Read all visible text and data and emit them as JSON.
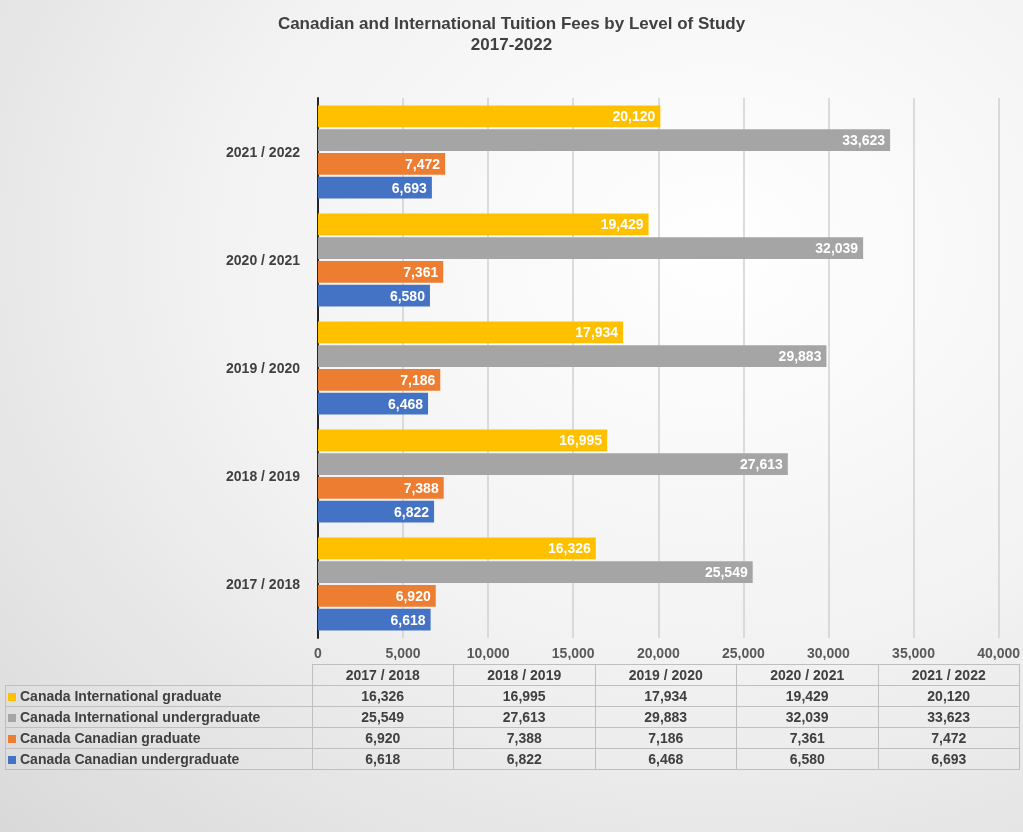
{
  "chart_data": {
    "type": "bar",
    "orientation": "horizontal",
    "title": "Canadian and International Tuition Fees by Level of Study",
    "subtitle": "2017-2022",
    "categories": [
      "2021 / 2022",
      "2020 / 2021",
      "2019 / 2020",
      "2018 / 2019",
      "2017 / 2018"
    ],
    "series": [
      {
        "name": "Canada International graduate",
        "color": "#ffc000",
        "values": [
          20120,
          19429,
          17934,
          16995,
          16326
        ],
        "value_labels": [
          "20,120",
          "19,429",
          "17,934",
          "16,995",
          "16,326"
        ]
      },
      {
        "name": "Canada International undergraduate",
        "color": "#a5a5a5",
        "values": [
          33623,
          32039,
          29883,
          27613,
          25549
        ],
        "value_labels": [
          "33,623",
          "32,039",
          "29,883",
          "27,613",
          "25,549"
        ]
      },
      {
        "name": "Canada Canadian graduate",
        "color": "#ed7d31",
        "values": [
          7472,
          7361,
          7186,
          7388,
          6920
        ],
        "value_labels": [
          "7,472",
          "7,361",
          "7,186",
          "7,388",
          "6,920"
        ]
      },
      {
        "name": "Canada Canadian undergraduate",
        "color": "#4472c4",
        "values": [
          6693,
          6580,
          6468,
          6822,
          6618
        ],
        "value_labels": [
          "6,693",
          "6,580",
          "6,468",
          "6,822",
          "6,618"
        ]
      }
    ],
    "xlim": [
      0,
      40000
    ],
    "xticks": [
      0,
      {
        "value": 5000,
        "label": "5,000"
      },
      {
        "value": 10000,
        "label": "10,000"
      },
      {
        "value": 15000,
        "label": "15,000"
      },
      {
        "value": 20000,
        "label": "20,000"
      },
      {
        "value": 25000,
        "label": "25,000"
      },
      {
        "value": 30000,
        "label": "30,000"
      },
      {
        "value": 35000,
        "label": "35,000"
      },
      {
        "value": 40000,
        "label": "40,000"
      }
    ],
    "grid": "x",
    "legend": "bottom"
  }
}
